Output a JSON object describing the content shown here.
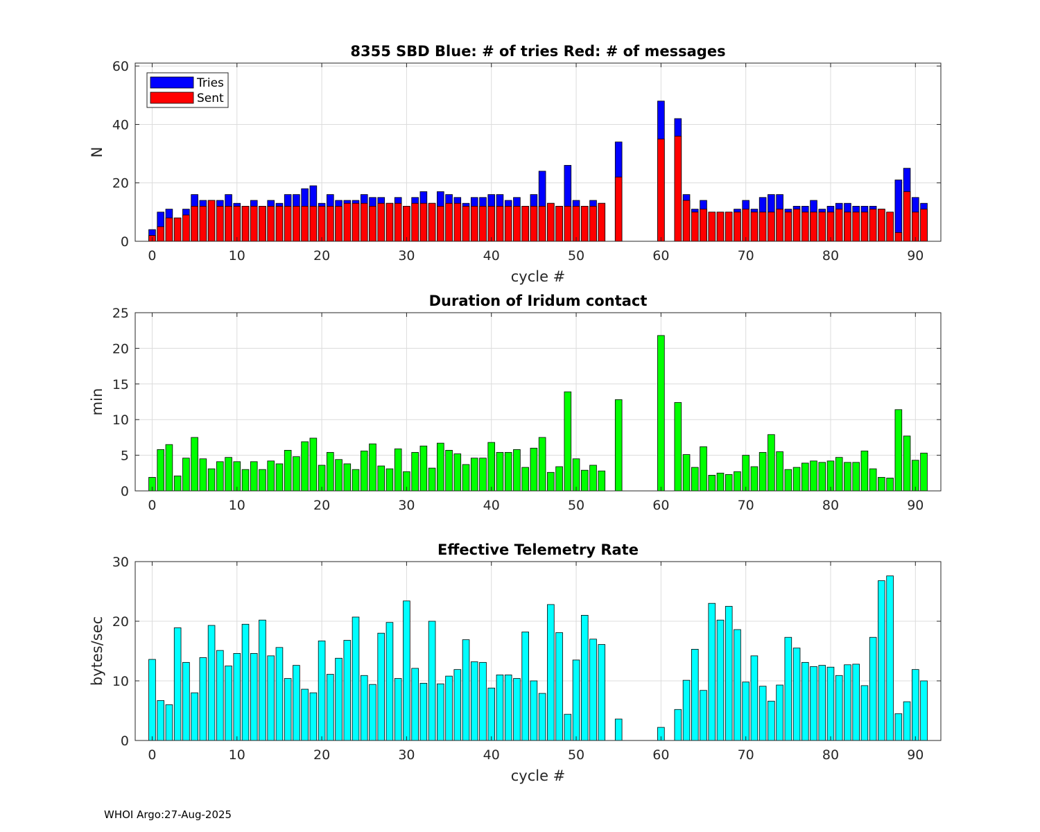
{
  "footer": {
    "credit": "WHOI Argo:27-Aug-2025"
  },
  "chart_data": [
    {
      "type": "bar",
      "title": "8355 SBD  Blue: # of tries   Red: # of messages",
      "xlabel": "cycle #",
      "ylabel": "N",
      "xlim": [
        -2,
        93
      ],
      "ylim": [
        0,
        61
      ],
      "xticks": [
        0,
        10,
        20,
        30,
        40,
        50,
        60,
        70,
        80,
        90
      ],
      "yticks": [
        0,
        20,
        40,
        60
      ],
      "grid": true,
      "legend": {
        "placement": "top-left",
        "entries": [
          "Tries",
          "Sent"
        ]
      },
      "colors": {
        "Tries": "#0000ff",
        "Sent": "#ff0000"
      },
      "x": [
        0,
        1,
        2,
        3,
        4,
        5,
        6,
        7,
        8,
        9,
        10,
        11,
        12,
        13,
        14,
        15,
        16,
        17,
        18,
        19,
        20,
        21,
        22,
        23,
        24,
        25,
        26,
        27,
        28,
        29,
        30,
        31,
        32,
        33,
        34,
        35,
        36,
        37,
        38,
        39,
        40,
        41,
        42,
        43,
        44,
        45,
        46,
        47,
        48,
        49,
        50,
        51,
        52,
        53,
        54,
        55,
        56,
        57,
        58,
        59,
        60,
        61,
        62,
        63,
        64,
        65,
        66,
        67,
        68,
        69,
        70,
        71,
        72,
        73,
        74,
        75,
        76,
        77,
        78,
        79,
        80,
        81,
        82,
        83,
        84,
        85,
        86,
        87,
        88,
        89,
        90,
        91
      ],
      "series": [
        {
          "name": "Tries",
          "values": [
            4,
            10,
            11,
            8,
            11,
            16,
            14,
            14,
            14,
            16,
            13,
            12,
            14,
            12,
            14,
            13,
            16,
            16,
            18,
            19,
            13,
            16,
            14,
            14,
            14,
            16,
            15,
            15,
            13,
            15,
            12,
            15,
            17,
            13,
            17,
            16,
            15,
            13,
            15,
            15,
            16,
            16,
            14,
            15,
            12,
            16,
            24,
            13,
            12,
            26,
            14,
            12,
            14,
            13,
            0,
            34,
            0,
            0,
            0,
            0,
            48,
            0,
            42,
            16,
            11,
            14,
            10,
            10,
            10,
            11,
            14,
            11,
            15,
            16,
            16,
            11,
            12,
            12,
            14,
            11,
            12,
            13,
            13,
            12,
            12,
            12,
            11,
            10,
            21,
            25,
            15,
            13
          ]
        },
        {
          "name": "Sent",
          "values": [
            2,
            5,
            8,
            8,
            9,
            12,
            12,
            14,
            12,
            12,
            12,
            12,
            12,
            12,
            12,
            12,
            12,
            12,
            12,
            12,
            12,
            12,
            12,
            13,
            13,
            13,
            12,
            13,
            13,
            13,
            12,
            13,
            13,
            13,
            12,
            13,
            13,
            12,
            12,
            12,
            12,
            12,
            12,
            12,
            12,
            12,
            12,
            13,
            12,
            12,
            12,
            12,
            12,
            13,
            0,
            22,
            0,
            0,
            0,
            0,
            35,
            0,
            36,
            14,
            10,
            11,
            10,
            10,
            10,
            10,
            11,
            10,
            10,
            10,
            11,
            10,
            11,
            10,
            10,
            10,
            10,
            11,
            10,
            10,
            10,
            11,
            11,
            10,
            3,
            17,
            10,
            11
          ]
        }
      ]
    },
    {
      "type": "bar",
      "title": "Duration of Iridum contact",
      "xlabel": "",
      "ylabel": "min",
      "xlim": [
        -2,
        93
      ],
      "ylim": [
        0,
        25
      ],
      "xticks": [
        0,
        10,
        20,
        30,
        40,
        50,
        60,
        70,
        80,
        90
      ],
      "yticks": [
        0,
        5,
        10,
        15,
        20,
        25
      ],
      "grid": true,
      "colors": {
        "bar": "#00ff00"
      },
      "x": [
        0,
        1,
        2,
        3,
        4,
        5,
        6,
        7,
        8,
        9,
        10,
        11,
        12,
        13,
        14,
        15,
        16,
        17,
        18,
        19,
        20,
        21,
        22,
        23,
        24,
        25,
        26,
        27,
        28,
        29,
        30,
        31,
        32,
        33,
        34,
        35,
        36,
        37,
        38,
        39,
        40,
        41,
        42,
        43,
        44,
        45,
        46,
        47,
        48,
        49,
        50,
        51,
        52,
        53,
        54,
        55,
        56,
        57,
        58,
        59,
        60,
        61,
        62,
        63,
        64,
        65,
        66,
        67,
        68,
        69,
        70,
        71,
        72,
        73,
        74,
        75,
        76,
        77,
        78,
        79,
        80,
        81,
        82,
        83,
        84,
        85,
        86,
        87,
        88,
        89,
        90,
        91
      ],
      "values": [
        1.9,
        5.8,
        6.5,
        2.1,
        4.6,
        7.5,
        4.5,
        3.1,
        4.1,
        4.7,
        4.1,
        3.0,
        4.1,
        3.0,
        4.2,
        3.8,
        5.7,
        4.8,
        6.9,
        7.4,
        3.6,
        5.4,
        4.4,
        3.8,
        3.0,
        5.6,
        6.6,
        3.5,
        3.1,
        5.9,
        2.7,
        5.4,
        6.3,
        3.2,
        6.7,
        5.7,
        5.2,
        3.7,
        4.6,
        4.6,
        6.8,
        5.4,
        5.4,
        5.8,
        3.3,
        6.0,
        7.5,
        2.6,
        3.4,
        13.9,
        4.5,
        2.9,
        3.6,
        2.8,
        0,
        12.8,
        0,
        0,
        0,
        0,
        21.8,
        0,
        12.4,
        5.1,
        3.3,
        6.2,
        2.2,
        2.5,
        2.3,
        2.7,
        5.0,
        3.4,
        5.4,
        7.9,
        5.5,
        3.0,
        3.3,
        3.9,
        4.2,
        4.0,
        4.2,
        4.7,
        4.0,
        4.0,
        5.6,
        3.1,
        1.9,
        1.8,
        11.4,
        7.7,
        4.3,
        5.3
      ]
    },
    {
      "type": "bar",
      "title": "Effective Telemetry Rate",
      "xlabel": "cycle #",
      "ylabel": "bytes/sec",
      "xlim": [
        -2,
        93
      ],
      "ylim": [
        0,
        30
      ],
      "xticks": [
        0,
        10,
        20,
        30,
        40,
        50,
        60,
        70,
        80,
        90
      ],
      "yticks": [
        0,
        10,
        20,
        30
      ],
      "grid": true,
      "colors": {
        "bar": "#00ffff"
      },
      "x": [
        0,
        1,
        2,
        3,
        4,
        5,
        6,
        7,
        8,
        9,
        10,
        11,
        12,
        13,
        14,
        15,
        16,
        17,
        18,
        19,
        20,
        21,
        22,
        23,
        24,
        25,
        26,
        27,
        28,
        29,
        30,
        31,
        32,
        33,
        34,
        35,
        36,
        37,
        38,
        39,
        40,
        41,
        42,
        43,
        44,
        45,
        46,
        47,
        48,
        49,
        50,
        51,
        52,
        53,
        54,
        55,
        56,
        57,
        58,
        59,
        60,
        61,
        62,
        63,
        64,
        65,
        66,
        67,
        68,
        69,
        70,
        71,
        72,
        73,
        74,
        75,
        76,
        77,
        78,
        79,
        80,
        81,
        82,
        83,
        84,
        85,
        86,
        87,
        88,
        89,
        90,
        91
      ],
      "values": [
        13.6,
        6.7,
        6.0,
        18.9,
        13.1,
        8.0,
        13.9,
        19.3,
        15.1,
        12.5,
        14.6,
        19.5,
        14.6,
        20.2,
        14.2,
        15.6,
        10.4,
        12.6,
        8.6,
        8.0,
        16.7,
        11.1,
        13.8,
        16.8,
        20.7,
        10.9,
        9.4,
        18.0,
        19.8,
        10.4,
        23.4,
        12.1,
        9.6,
        20.0,
        9.5,
        10.8,
        11.9,
        16.9,
        13.2,
        13.1,
        8.8,
        11.0,
        11.0,
        10.4,
        18.2,
        10.0,
        7.9,
        22.8,
        18.1,
        4.4,
        13.5,
        21.0,
        17.0,
        16.1,
        0,
        3.6,
        0,
        0,
        0,
        0,
        2.2,
        0,
        5.2,
        10.1,
        15.3,
        8.4,
        23.0,
        20.2,
        22.5,
        18.6,
        9.8,
        14.2,
        9.1,
        6.6,
        9.3,
        17.3,
        15.5,
        13.1,
        12.4,
        12.6,
        12.3,
        10.9,
        12.7,
        12.8,
        9.2,
        17.3,
        26.8,
        27.6,
        4.5,
        6.5,
        11.9,
        10.0
      ]
    }
  ]
}
